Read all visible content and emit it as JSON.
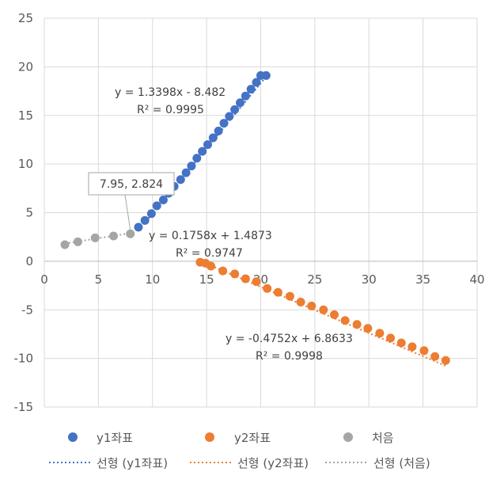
{
  "chart_data": {
    "type": "scatter",
    "xlim": [
      0,
      40
    ],
    "ylim": [
      -15,
      25
    ],
    "x_ticks": [
      0,
      5,
      10,
      15,
      20,
      25,
      30,
      35,
      40
    ],
    "y_ticks": [
      -15,
      -10,
      -5,
      0,
      5,
      10,
      15,
      20,
      25
    ],
    "grid": true,
    "legend_position": "bottom",
    "series": [
      {
        "name": "y1좌표",
        "color": "#4472C4",
        "x": [
          8.7,
          9.3,
          9.9,
          10.4,
          11.0,
          11.5,
          12.0,
          12.6,
          13.1,
          13.6,
          14.1,
          14.6,
          15.1,
          15.6,
          16.1,
          16.6,
          17.1,
          17.6,
          18.1,
          18.6,
          19.1,
          19.6,
          20.0,
          20.5
        ],
        "y": [
          3.5,
          4.2,
          4.9,
          5.7,
          6.3,
          7.0,
          7.7,
          8.4,
          9.1,
          9.8,
          10.6,
          11.3,
          12.0,
          12.7,
          13.4,
          14.2,
          14.9,
          15.6,
          16.3,
          17.0,
          17.7,
          18.4,
          19.1,
          19.1
        ]
      },
      {
        "name": "y2좌표",
        "color": "#ED7D31",
        "x": [
          14.4,
          14.9,
          15.4,
          16.5,
          17.6,
          18.6,
          19.6,
          20.6,
          21.6,
          22.7,
          23.7,
          24.7,
          25.8,
          26.8,
          27.8,
          28.9,
          29.9,
          31.0,
          32.0,
          33.0,
          34.0,
          35.1,
          36.1,
          37.1
        ],
        "y": [
          -0.1,
          -0.2,
          -0.5,
          -1.0,
          -1.3,
          -1.8,
          -2.1,
          -2.8,
          -3.2,
          -3.6,
          -4.2,
          -4.6,
          -5.0,
          -5.5,
          -6.1,
          -6.5,
          -6.9,
          -7.4,
          -7.9,
          -8.4,
          -8.8,
          -9.2,
          -9.8,
          -10.2
        ]
      },
      {
        "name": "처음",
        "color": "#A5A5A5",
        "x": [
          1.9,
          3.1,
          4.7,
          6.4,
          7.95
        ],
        "y": [
          1.7,
          2.0,
          2.4,
          2.6,
          2.824
        ]
      }
    ],
    "trendlines": [
      {
        "name": "선형 (y1좌표)",
        "color": "#4472C4",
        "slope": 1.3398,
        "intercept": -8.482,
        "x_range": [
          8.7,
          20.5
        ],
        "equation": "y = 1.3398x - 8.482",
        "r2": "R² = 0.9995"
      },
      {
        "name": "선형 (y2좌표)",
        "color": "#ED7D31",
        "slope": -0.4752,
        "intercept": 6.8633,
        "x_range": [
          14.4,
          37.1
        ],
        "equation": "y = -0.4752x + 6.8633",
        "r2": "R² = 0.9998"
      },
      {
        "name": "선형 (처음)",
        "color": "#A5A5A5",
        "slope": 0.1758,
        "intercept": 1.4873,
        "x_range": [
          1.9,
          7.95
        ],
        "equation": "y = 0.1758x + 1.4873",
        "r2": "R² = 0.9747"
      }
    ],
    "callout": {
      "text": "7.95, 2.824",
      "point": [
        7.95,
        2.824
      ]
    },
    "legend_markers": [
      "y1좌표",
      "y2좌표",
      "처음"
    ],
    "legend_lines": [
      "선형 (y1좌표)",
      "선형 (y2좌표)",
      "선형 (처음)"
    ]
  }
}
